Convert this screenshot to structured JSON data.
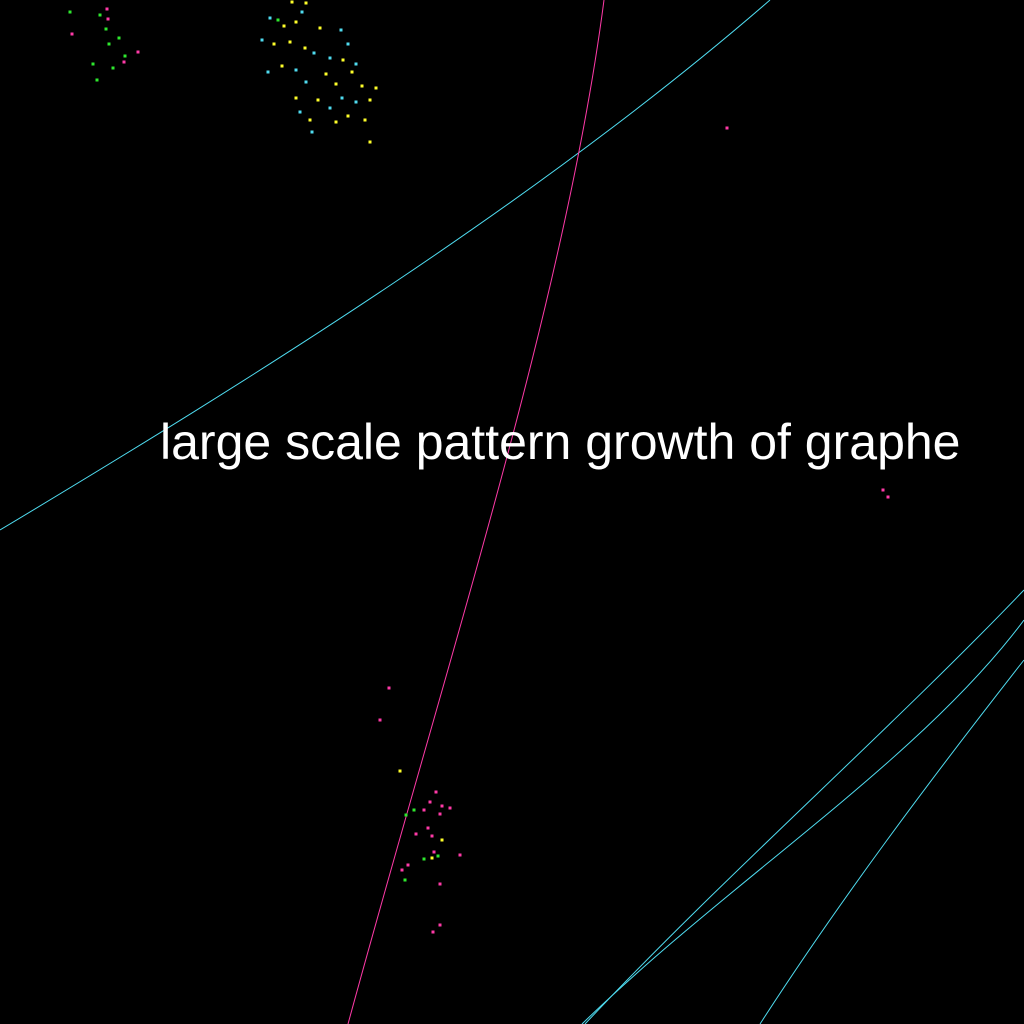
{
  "caption": "large scale pattern growth of graphe",
  "colors": {
    "background": "#000000",
    "text": "#ffffff",
    "cyan": "#4fdcf0",
    "magenta": "#ff3aa8",
    "yellow": "#ffff2a",
    "green": "#2ee82e"
  }
}
